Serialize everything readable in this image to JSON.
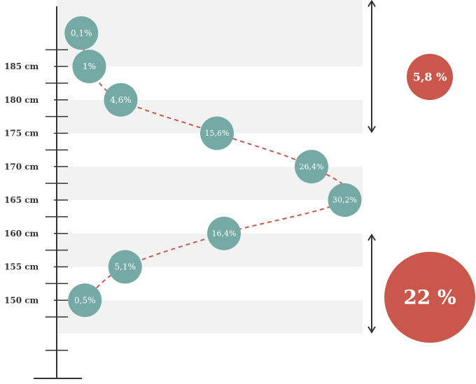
{
  "colors": {
    "bubble": "#74a9a4",
    "connector": "#c9574c",
    "summary": "#c9574c",
    "axis": "#333333",
    "band": "#f2f2f2"
  },
  "chart_data": {
    "type": "scatter",
    "title": "",
    "xlabel": "",
    "ylabel": "",
    "y_ticks": [
      "185 cm",
      "180 cm",
      "175 cm",
      "170 cm",
      "165 cm",
      "160 cm",
      "155 cm",
      "150 cm"
    ],
    "points": [
      {
        "height_cm": 190,
        "share_pct": 0.1,
        "label": "0,1%"
      },
      {
        "height_cm": 185,
        "share_pct": 1.0,
        "label": "1%"
      },
      {
        "height_cm": 180,
        "share_pct": 4.6,
        "label": "4,6%"
      },
      {
        "height_cm": 175,
        "share_pct": 15.6,
        "label": "15,6%"
      },
      {
        "height_cm": 170,
        "share_pct": 26.4,
        "label": "26,4%"
      },
      {
        "height_cm": 165,
        "share_pct": 30.2,
        "label": "30,2%"
      },
      {
        "height_cm": 160,
        "share_pct": 16.4,
        "label": "16,4%"
      },
      {
        "height_cm": 155,
        "share_pct": 5.1,
        "label": "5,1%"
      },
      {
        "height_cm": 150,
        "share_pct": 0.5,
        "label": "0,5%"
      }
    ],
    "summaries": [
      {
        "label": "5,8 %",
        "from_cm": 175,
        "to_cm": 195
      },
      {
        "label": "22 %",
        "from_cm": 145,
        "to_cm": 160
      }
    ]
  }
}
